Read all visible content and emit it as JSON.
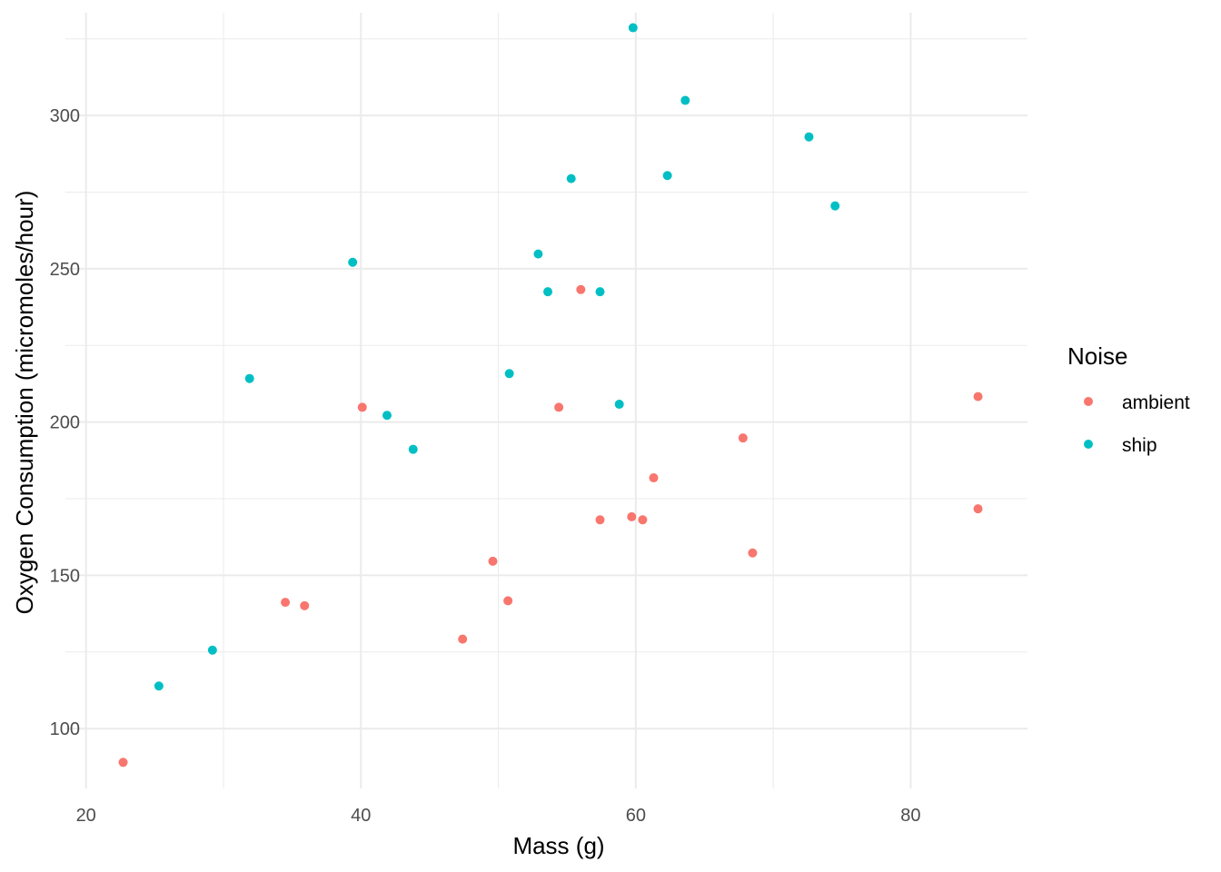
{
  "chart_data": {
    "type": "scatter",
    "title": "",
    "xlabel": "Mass (g)",
    "ylabel": "Oxygen Consumption (micromoles/hour)",
    "xlim": [
      18.5,
      88.5
    ],
    "ylim": [
      80.5,
      333.5
    ],
    "x_ticks": [
      20,
      40,
      60,
      80
    ],
    "x_tick_labels": [
      "20",
      "40",
      "60",
      "80"
    ],
    "y_ticks": [
      100,
      150,
      200,
      250,
      300
    ],
    "y_tick_labels": [
      "100",
      "150",
      "200",
      "250",
      "300"
    ],
    "grid": true,
    "legend": {
      "title": "Noise",
      "position": "right"
    },
    "series": [
      {
        "name": "ambient",
        "color": "#F8766D",
        "points": [
          [
            22.7,
            89.0
          ],
          [
            34.5,
            141.2
          ],
          [
            35.9,
            140.1
          ],
          [
            40.1,
            204.8
          ],
          [
            47.4,
            129.2
          ],
          [
            49.6,
            154.6
          ],
          [
            50.7,
            141.7
          ],
          [
            54.4,
            204.8
          ],
          [
            56.0,
            243.2
          ],
          [
            57.4,
            168.1
          ],
          [
            59.7,
            169.1
          ],
          [
            60.5,
            168.1
          ],
          [
            61.3,
            181.8
          ],
          [
            67.8,
            194.8
          ],
          [
            68.5,
            157.3
          ],
          [
            84.9,
            208.3
          ],
          [
            84.9,
            171.7
          ]
        ]
      },
      {
        "name": "ship",
        "color": "#00BFC4",
        "points": [
          [
            25.3,
            113.9
          ],
          [
            29.2,
            125.6
          ],
          [
            31.9,
            214.2
          ],
          [
            39.4,
            252.1
          ],
          [
            41.9,
            202.2
          ],
          [
            43.8,
            191.1
          ],
          [
            50.8,
            215.8
          ],
          [
            52.9,
            254.8
          ],
          [
            53.6,
            242.5
          ],
          [
            55.3,
            279.4
          ],
          [
            57.4,
            242.5
          ],
          [
            58.8,
            205.8
          ],
          [
            59.8,
            328.6
          ],
          [
            62.3,
            280.4
          ],
          [
            63.6,
            304.9
          ],
          [
            72.6,
            293.0
          ],
          [
            74.5,
            270.5
          ]
        ]
      }
    ]
  }
}
